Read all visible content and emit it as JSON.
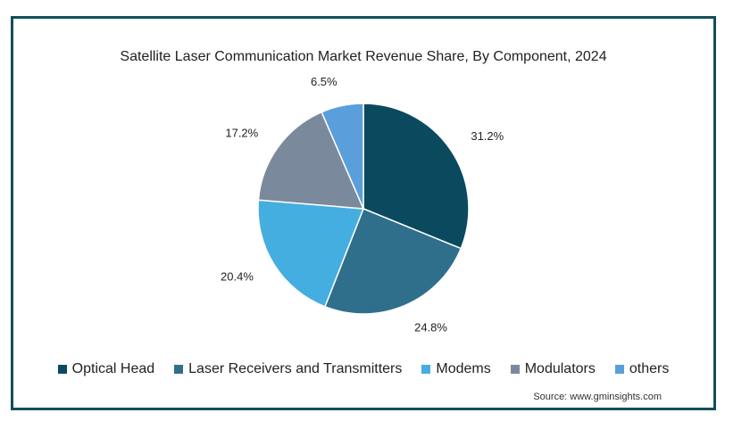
{
  "source": "Source: www.gminsights.com",
  "chart_data": {
    "type": "pie",
    "title": "Satellite Laser Communication Market Revenue Share, By Component, 2024",
    "categories": [
      "Optical Head",
      "Laser Receivers and Transmitters",
      "Modems",
      "Modulators",
      "others"
    ],
    "values": [
      31.2,
      24.8,
      20.4,
      17.2,
      6.5
    ],
    "value_labels": [
      "31.2%",
      "24.8%",
      "20.4%",
      "17.2%",
      "6.5%"
    ],
    "colors": [
      "#0b4a5e",
      "#2f6f8c",
      "#45aee0",
      "#7a8a9c",
      "#5a9fdb"
    ],
    "start_angle_deg": 0,
    "direction": "clockwise",
    "legend": "bottom"
  }
}
